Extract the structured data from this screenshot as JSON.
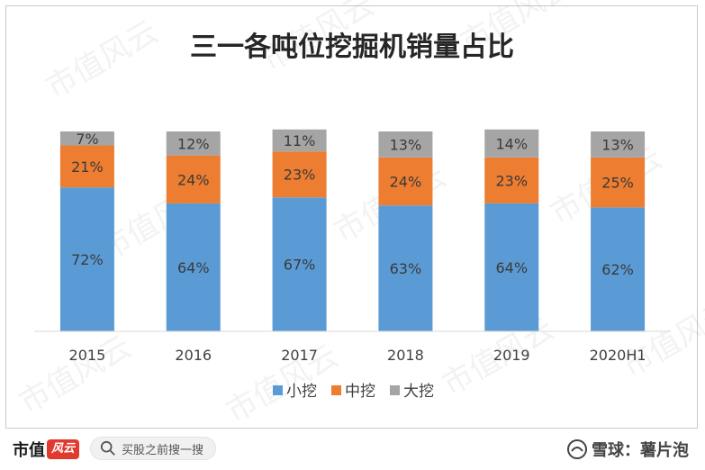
{
  "chart_data": {
    "type": "bar",
    "stacked": true,
    "title": "三一各吨位挖掘机销量占比",
    "categories": [
      "2015",
      "2016",
      "2017",
      "2018",
      "2019",
      "2020H1"
    ],
    "series": [
      {
        "name": "小挖",
        "values": [
          72,
          64,
          67,
          63,
          64,
          62
        ],
        "labels": [
          "72%",
          "64%",
          "67%",
          "63%",
          "64%",
          "62%"
        ],
        "color": "#5b9bd5"
      },
      {
        "name": "中挖",
        "values": [
          21,
          24,
          23,
          24,
          23,
          25
        ],
        "labels": [
          "21%",
          "24%",
          "23%",
          "24%",
          "23%",
          "25%"
        ],
        "color": "#ed7d31"
      },
      {
        "name": "大挖",
        "values": [
          7,
          12,
          11,
          13,
          14,
          13
        ],
        "labels": [
          "7%",
          "12%",
          "11%",
          "13%",
          "14%",
          "13%"
        ],
        "color": "#a5a5a5"
      }
    ],
    "ylim": [
      0,
      100
    ],
    "grid": false,
    "legend": "bottom"
  },
  "watermark": {
    "text": "市值风云"
  },
  "footer": {
    "brand": "市值",
    "brand_stamp": "风云",
    "search_text": "买股之前搜一搜",
    "xueqiu_text": "雪球：薯片泡"
  }
}
